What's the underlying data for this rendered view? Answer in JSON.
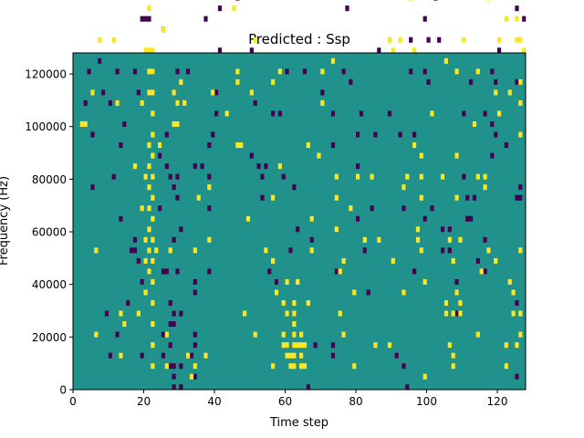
{
  "chart_data": {
    "type": "heatmap",
    "title": "Predicted : Ssp",
    "xlabel": "Time step",
    "ylabel": "Frequency (Hz)",
    "xlim": [
      0,
      128
    ],
    "ylim": [
      0,
      128000
    ],
    "x_ticks": [
      0,
      20,
      40,
      60,
      80,
      100,
      120
    ],
    "y_ticks": [
      0,
      20000,
      40000,
      60000,
      80000,
      100000,
      120000
    ],
    "x_tick_labels": [
      "0",
      "20",
      "40",
      "60",
      "80",
      "100",
      "120"
    ],
    "y_tick_labels": [
      "0",
      "20000",
      "40000",
      "60000",
      "80000",
      "100000",
      "120000"
    ],
    "n_time_steps": 128,
    "n_freq_bins": 64,
    "freq_bin_hz": 2000,
    "grid": false,
    "colormap": "viridis",
    "colors": {
      "background": "#21918c",
      "high": "#fde725",
      "low": "#440154"
    },
    "levels": {
      "background": 0,
      "high": 1,
      "low": -1
    },
    "cells_high": [
      [
        2,
        50
      ],
      [
        3,
        50
      ],
      [
        5,
        56
      ],
      [
        6,
        10
      ],
      [
        6,
        26
      ],
      [
        7,
        66
      ],
      [
        11,
        66
      ],
      [
        12,
        54
      ],
      [
        13,
        6
      ],
      [
        13,
        14
      ],
      [
        14,
        12
      ],
      [
        16,
        110
      ],
      [
        17,
        42
      ],
      [
        17,
        76
      ],
      [
        18,
        14
      ],
      [
        19,
        34
      ],
      [
        19,
        54
      ],
      [
        20,
        18
      ],
      [
        20,
        24
      ],
      [
        20,
        28
      ],
      [
        20,
        40
      ],
      [
        20,
        64
      ],
      [
        20,
        80
      ],
      [
        21,
        22
      ],
      [
        21,
        26
      ],
      [
        21,
        30
      ],
      [
        21,
        34
      ],
      [
        21,
        38
      ],
      [
        21,
        42
      ],
      [
        21,
        46
      ],
      [
        21,
        60
      ],
      [
        21,
        64
      ],
      [
        21,
        72
      ],
      [
        21,
        56
      ],
      [
        22,
        4
      ],
      [
        22,
        8
      ],
      [
        22,
        12
      ],
      [
        22,
        16
      ],
      [
        22,
        20
      ],
      [
        22,
        24
      ],
      [
        22,
        28
      ],
      [
        22,
        32
      ],
      [
        22,
        36
      ],
      [
        22,
        40
      ],
      [
        22,
        44
      ],
      [
        22,
        48
      ],
      [
        22,
        52
      ],
      [
        22,
        56
      ],
      [
        22,
        60
      ],
      [
        22,
        64
      ],
      [
        23,
        26
      ],
      [
        24,
        46
      ],
      [
        25,
        68
      ],
      [
        26,
        10
      ],
      [
        26,
        4
      ],
      [
        27,
        26
      ],
      [
        28,
        50
      ],
      [
        28,
        56
      ],
      [
        29,
        50
      ],
      [
        29,
        54
      ],
      [
        30,
        58
      ],
      [
        31,
        54
      ],
      [
        32,
        6
      ],
      [
        33,
        2
      ],
      [
        34,
        26
      ],
      [
        34,
        4
      ],
      [
        35,
        36
      ],
      [
        34,
        82
      ],
      [
        35,
        92
      ],
      [
        35,
        104
      ],
      [
        36,
        114
      ],
      [
        36,
        120
      ],
      [
        37,
        6
      ],
      [
        38,
        28
      ],
      [
        38,
        38
      ],
      [
        39,
        56
      ],
      [
        42,
        84
      ],
      [
        43,
        90
      ],
      [
        43,
        52
      ],
      [
        44,
        104
      ],
      [
        45,
        72
      ],
      [
        46,
        46
      ],
      [
        46,
        60
      ],
      [
        46,
        58
      ],
      [
        47,
        46
      ],
      [
        48,
        14
      ],
      [
        49,
        32
      ],
      [
        50,
        56
      ],
      [
        51,
        66
      ],
      [
        51,
        10
      ],
      [
        52,
        96
      ],
      [
        52,
        78
      ],
      [
        52,
        82
      ],
      [
        54,
        26
      ],
      [
        56,
        4
      ],
      [
        56,
        24
      ],
      [
        56,
        36
      ],
      [
        56,
        58
      ],
      [
        57,
        18
      ],
      [
        57,
        110
      ],
      [
        58,
        42
      ],
      [
        58,
        60
      ],
      [
        59,
        16
      ],
      [
        59,
        10
      ],
      [
        59,
        8
      ],
      [
        60,
        8
      ],
      [
        60,
        6
      ],
      [
        60,
        14
      ],
      [
        60,
        20
      ],
      [
        61,
        4
      ],
      [
        61,
        6
      ],
      [
        62,
        4
      ],
      [
        62,
        6
      ],
      [
        62,
        8
      ],
      [
        62,
        10
      ],
      [
        62,
        12
      ],
      [
        62,
        14
      ],
      [
        62,
        16
      ],
      [
        63,
        8
      ],
      [
        63,
        20
      ],
      [
        64,
        4
      ],
      [
        64,
        6
      ],
      [
        64,
        8
      ],
      [
        64,
        10
      ],
      [
        65,
        8
      ],
      [
        65,
        4
      ],
      [
        66,
        16
      ],
      [
        66,
        46
      ],
      [
        66,
        100
      ],
      [
        67,
        26
      ],
      [
        67,
        32
      ],
      [
        67,
        90
      ],
      [
        68,
        90
      ],
      [
        69,
        44
      ],
      [
        70,
        54
      ],
      [
        70,
        60
      ],
      [
        73,
        62
      ],
      [
        74,
        40
      ],
      [
        74,
        30
      ],
      [
        74,
        36
      ],
      [
        75,
        14
      ],
      [
        75,
        22
      ],
      [
        76,
        10
      ],
      [
        76,
        24
      ],
      [
        78,
        34
      ],
      [
        79,
        18
      ],
      [
        79,
        4
      ],
      [
        80,
        40
      ],
      [
        82,
        28
      ],
      [
        84,
        40
      ],
      [
        85,
        8
      ],
      [
        86,
        28
      ],
      [
        89,
        66
      ],
      [
        89,
        8
      ],
      [
        90,
        24
      ],
      [
        90,
        64
      ],
      [
        92,
        94
      ],
      [
        92,
        96
      ],
      [
        92,
        66
      ],
      [
        93,
        18
      ],
      [
        93,
        38
      ],
      [
        94,
        40
      ],
      [
        95,
        86
      ],
      [
        95,
        74
      ],
      [
        96,
        64
      ],
      [
        96,
        46
      ],
      [
        97,
        28
      ],
      [
        97,
        30
      ],
      [
        98,
        26
      ],
      [
        98,
        40
      ],
      [
        98,
        36
      ],
      [
        98,
        44
      ],
      [
        99,
        2
      ],
      [
        99,
        20
      ],
      [
        101,
        52
      ],
      [
        104,
        40
      ],
      [
        105,
        16
      ],
      [
        105,
        14
      ],
      [
        105,
        62
      ],
      [
        106,
        8
      ],
      [
        106,
        28
      ],
      [
        106,
        96
      ],
      [
        107,
        4
      ],
      [
        107,
        6
      ],
      [
        107,
        14
      ],
      [
        107,
        24
      ],
      [
        107,
        76
      ],
      [
        107,
        108
      ],
      [
        107,
        116
      ],
      [
        108,
        18
      ],
      [
        108,
        36
      ],
      [
        108,
        44
      ],
      [
        108,
        60
      ],
      [
        109,
        16
      ],
      [
        109,
        14
      ],
      [
        109,
        28
      ],
      [
        109,
        82
      ],
      [
        110,
        88
      ],
      [
        110,
        66
      ],
      [
        113,
        50
      ],
      [
        113,
        76
      ],
      [
        114,
        40
      ],
      [
        114,
        10
      ],
      [
        114,
        60
      ],
      [
        115,
        22
      ],
      [
        116,
        40
      ],
      [
        116,
        38
      ],
      [
        117,
        26
      ],
      [
        117,
        74
      ],
      [
        119,
        24
      ],
      [
        119,
        56
      ],
      [
        120,
        52
      ],
      [
        120,
        66
      ],
      [
        120,
        76
      ],
      [
        121,
        106
      ],
      [
        122,
        4
      ],
      [
        122,
        8
      ],
      [
        122,
        70
      ],
      [
        123,
        20
      ],
      [
        123,
        56
      ],
      [
        124,
        14
      ],
      [
        124,
        18
      ],
      [
        124,
        90
      ],
      [
        124,
        100
      ],
      [
        125,
        8
      ],
      [
        125,
        66
      ],
      [
        125,
        70
      ],
      [
        126,
        10
      ],
      [
        126,
        14
      ],
      [
        126,
        26
      ],
      [
        126,
        48
      ],
      [
        126,
        54
      ],
      [
        126,
        58
      ],
      [
        126,
        66
      ],
      [
        126,
        104
      ],
      [
        126,
        110
      ],
      [
        127,
        64
      ]
    ],
    "cells_low": [
      [
        3,
        54
      ],
      [
        4,
        60
      ],
      [
        5,
        48
      ],
      [
        5,
        38
      ],
      [
        7,
        62
      ],
      [
        8,
        56
      ],
      [
        9,
        14
      ],
      [
        10,
        6
      ],
      [
        10,
        54
      ],
      [
        11,
        40
      ],
      [
        12,
        60
      ],
      [
        12,
        10
      ],
      [
        12,
        88
      ],
      [
        13,
        46
      ],
      [
        13,
        32
      ],
      [
        14,
        50
      ],
      [
        15,
        16
      ],
      [
        16,
        26
      ],
      [
        17,
        28
      ],
      [
        17,
        26
      ],
      [
        17,
        60
      ],
      [
        18,
        24
      ],
      [
        18,
        56
      ],
      [
        19,
        70
      ],
      [
        19,
        6
      ],
      [
        19,
        20
      ],
      [
        20,
        70
      ],
      [
        21,
        70
      ],
      [
        22,
        60
      ],
      [
        24,
        34
      ],
      [
        24,
        44
      ],
      [
        25,
        6
      ],
      [
        25,
        10
      ],
      [
        25,
        22
      ],
      [
        25,
        68
      ],
      [
        26,
        22
      ],
      [
        26,
        42
      ],
      [
        26,
        48
      ],
      [
        27,
        4
      ],
      [
        27,
        8
      ],
      [
        27,
        12
      ],
      [
        27,
        16
      ],
      [
        27,
        40
      ],
      [
        28,
        0
      ],
      [
        28,
        2
      ],
      [
        28,
        4
      ],
      [
        28,
        12
      ],
      [
        28,
        14
      ],
      [
        28,
        28
      ],
      [
        28,
        38
      ],
      [
        29,
        22
      ],
      [
        29,
        36
      ],
      [
        29,
        40
      ],
      [
        29,
        54
      ],
      [
        29,
        60
      ],
      [
        30,
        0
      ],
      [
        30,
        4
      ],
      [
        30,
        14
      ],
      [
        30,
        30
      ],
      [
        32,
        60
      ],
      [
        32,
        98
      ],
      [
        32,
        100
      ],
      [
        33,
        6
      ],
      [
        33,
        86
      ],
      [
        34,
        2
      ],
      [
        34,
        8
      ],
      [
        34,
        10
      ],
      [
        34,
        18
      ],
      [
        34,
        20
      ],
      [
        34,
        42
      ],
      [
        36,
        42
      ],
      [
        37,
        70
      ],
      [
        38,
        22
      ],
      [
        38,
        34
      ],
      [
        38,
        40
      ],
      [
        38,
        46
      ],
      [
        39,
        48
      ],
      [
        40,
        52
      ],
      [
        40,
        56
      ],
      [
        41,
        64
      ],
      [
        41,
        72
      ],
      [
        42,
        78
      ],
      [
        43,
        82
      ],
      [
        44,
        88
      ],
      [
        45,
        92
      ],
      [
        45,
        106
      ],
      [
        46,
        74
      ],
      [
        46,
        88
      ],
      [
        47,
        88
      ],
      [
        48,
        86
      ],
      [
        49,
        76
      ],
      [
        50,
        64
      ],
      [
        50,
        44
      ],
      [
        51,
        54
      ],
      [
        52,
        42
      ],
      [
        53,
        36
      ],
      [
        53,
        40
      ],
      [
        54,
        42
      ],
      [
        55,
        22
      ],
      [
        56,
        52
      ],
      [
        57,
        20
      ],
      [
        58,
        52
      ],
      [
        59,
        40
      ],
      [
        60,
        76
      ],
      [
        60,
        60
      ],
      [
        61,
        26
      ],
      [
        62,
        38
      ],
      [
        63,
        30
      ],
      [
        64,
        84
      ],
      [
        65,
        60
      ],
      [
        66,
        0
      ],
      [
        67,
        28
      ],
      [
        68,
        8
      ],
      [
        68,
        92
      ],
      [
        69,
        100
      ],
      [
        70,
        88
      ],
      [
        70,
        56
      ],
      [
        71,
        90
      ],
      [
        73,
        6
      ],
      [
        73,
        8
      ],
      [
        73,
        46
      ],
      [
        73,
        52
      ],
      [
        74,
        22
      ],
      [
        75,
        82
      ],
      [
        76,
        60
      ],
      [
        77,
        72
      ],
      [
        78,
        58
      ],
      [
        79,
        100
      ],
      [
        80,
        48
      ],
      [
        80,
        42
      ],
      [
        80,
        32
      ],
      [
        81,
        52
      ],
      [
        82,
        26
      ],
      [
        83,
        18
      ],
      [
        84,
        34
      ],
      [
        85,
        48
      ],
      [
        86,
        64
      ],
      [
        87,
        92
      ],
      [
        88,
        82
      ],
      [
        88,
        78
      ],
      [
        89,
        52
      ],
      [
        90,
        104
      ],
      [
        91,
        6
      ],
      [
        91,
        82
      ],
      [
        92,
        48
      ],
      [
        93,
        34
      ],
      [
        93,
        4
      ],
      [
        94,
        0
      ],
      [
        95,
        60
      ],
      [
        95,
        66
      ],
      [
        96,
        48
      ],
      [
        96,
        22
      ],
      [
        97,
        100
      ],
      [
        98,
        80
      ],
      [
        99,
        70
      ],
      [
        99,
        60
      ],
      [
        99,
        32
      ],
      [
        100,
        66
      ],
      [
        100,
        58
      ],
      [
        101,
        34
      ],
      [
        102,
        74
      ],
      [
        103,
        66
      ],
      [
        104,
        84
      ],
      [
        104,
        30
      ],
      [
        104,
        26
      ],
      [
        105,
        80
      ],
      [
        106,
        26
      ],
      [
        106,
        30
      ],
      [
        107,
        104
      ],
      [
        108,
        84
      ],
      [
        108,
        20
      ],
      [
        108,
        14
      ],
      [
        110,
        40
      ],
      [
        110,
        52
      ],
      [
        111,
        32
      ],
      [
        111,
        36
      ],
      [
        112,
        32
      ],
      [
        112,
        58
      ],
      [
        113,
        36
      ],
      [
        114,
        24
      ],
      [
        115,
        84
      ],
      [
        115,
        82
      ],
      [
        116,
        22
      ],
      [
        116,
        28
      ],
      [
        116,
        52
      ],
      [
        117,
        86
      ],
      [
        118,
        60
      ],
      [
        118,
        50
      ],
      [
        118,
        44
      ],
      [
        119,
        48
      ],
      [
        119,
        58
      ],
      [
        120,
        64
      ],
      [
        121,
        76
      ],
      [
        122,
        46
      ],
      [
        122,
        82
      ],
      [
        123,
        94
      ],
      [
        123,
        102
      ],
      [
        124,
        108
      ],
      [
        124,
        98
      ],
      [
        125,
        2
      ],
      [
        125,
        16
      ],
      [
        125,
        36
      ],
      [
        125,
        58
      ],
      [
        125,
        72
      ],
      [
        126,
        98
      ],
      [
        126,
        100
      ],
      [
        126,
        36
      ],
      [
        126,
        38
      ],
      [
        127,
        96
      ],
      [
        127,
        100
      ],
      [
        127,
        92
      ],
      [
        127,
        70
      ]
    ]
  }
}
